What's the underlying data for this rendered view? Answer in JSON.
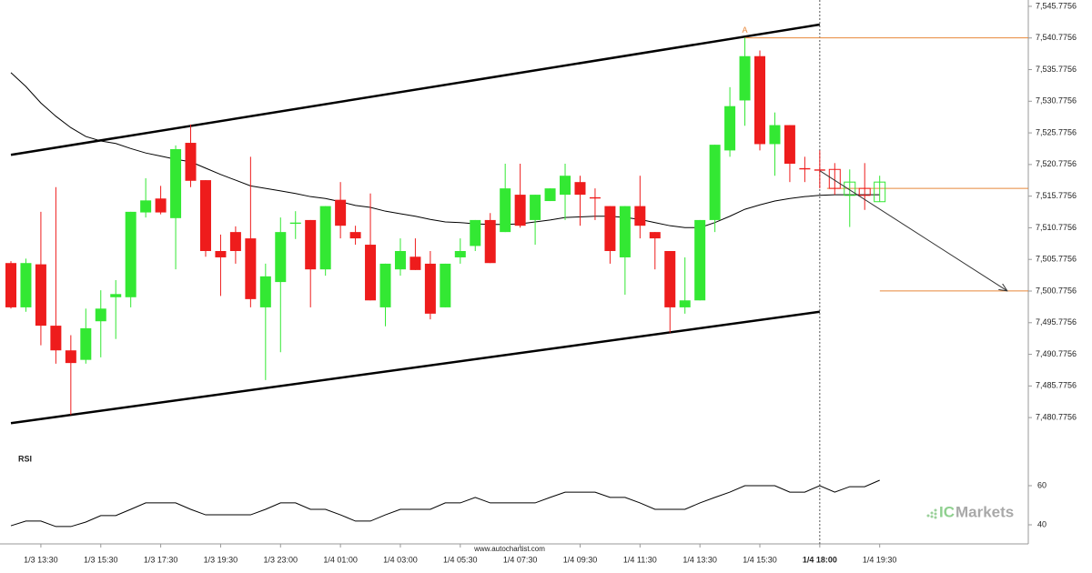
{
  "chart_data": {
    "type": "candlestick",
    "categories": [
      null,
      null,
      "1/3 13:30",
      null,
      null,
      null,
      "1/3 15:30",
      null,
      null,
      null,
      "1/3 17:30",
      null,
      null,
      null,
      "1/3 19:30",
      null,
      null,
      null,
      "1/3 23:00",
      null,
      null,
      null,
      "1/4 01:00",
      null,
      null,
      null,
      "1/4 03:00",
      null,
      null,
      null,
      "1/4 05:30",
      null,
      null,
      null,
      "1/4 07:30",
      null,
      null,
      null,
      "1/4 09:30",
      null,
      null,
      null,
      "1/4 11:30",
      null,
      null,
      null,
      "1/4 13:30",
      null,
      null,
      null,
      "1/4 15:30",
      null,
      null,
      null,
      "1/4 18:00",
      null,
      null,
      null,
      "1/4 19:30"
    ],
    "open": [
      7505.2,
      7498.2,
      7505.0,
      7495.3,
      7491.4,
      7489.9,
      7496.0,
      7499.8,
      7499.8,
      7513.2,
      7515.4,
      7512.3,
      7524.2,
      7518.3,
      7507.1,
      7510.1,
      7509.1,
      7498.2,
      7502.2,
      7511.4,
      7512.0,
      7504.2,
      7515.2,
      7510.1,
      7508.1,
      7498.2,
      7504.2,
      7506.2,
      7505.1,
      7498.2,
      7506.1,
      7507.9,
      7512.0,
      7510.1,
      7516.0,
      7512.0,
      7515.0,
      7516.0,
      7518.0,
      7515.6,
      7514.2,
      7506.1,
      7514.2,
      7510.1,
      7507.1,
      7498.2,
      7499.3,
      7512.0,
      7523.0,
      7530.9,
      7537.9,
      7524.0,
      7527.0,
      7520.2,
      7520.0,
      7520.0,
      7515.9,
      7517.0,
      7514.9
    ],
    "high": [
      7505.5,
      7505.9,
      7513.3,
      7517.2,
      7493.8,
      7498.0,
      7500.9,
      7502.5,
      7513.3,
      7518.6,
      7517.4,
      7523.8,
      7527.1,
      7518.3,
      7509.7,
      7511.0,
      7522.0,
      7505.1,
      7512.4,
      7513.4,
      7512.0,
      7514.2,
      7518.0,
      7511.1,
      7516.2,
      7505.1,
      7509.1,
      7509.1,
      7507.1,
      7505.1,
      7509.1,
      7512.0,
      7513.1,
      7520.9,
      7520.9,
      7516.0,
      7517.0,
      7520.9,
      7519.0,
      7517.0,
      7514.2,
      7514.2,
      7519.0,
      7510.1,
      7507.1,
      7506.1,
      7512.0,
      7523.9,
      7533.0,
      7540.8,
      7538.8,
      7529.0,
      7527.0,
      7522.0,
      7523.0,
      7521.0,
      7520.0,
      7521.0,
      7519.0
    ],
    "low": [
      7498.0,
      7497.5,
      7492.2,
      7489.3,
      7481.2,
      7489.3,
      7490.3,
      7493.2,
      7498.2,
      7512.4,
      7512.9,
      7504.2,
      7517.2,
      7506.2,
      7500.0,
      7505.1,
      7498.2,
      7486.7,
      7491.1,
      7509.0,
      7498.2,
      7503.2,
      7509.1,
      7508.1,
      7499.3,
      7495.2,
      7503.2,
      7504.1,
      7496.3,
      7498.2,
      7505.1,
      7507.1,
      7505.2,
      7510.1,
      7510.8,
      7508.1,
      7515.0,
      7512.0,
      7511.1,
      7512.0,
      7505.1,
      7500.2,
      7509.1,
      7504.2,
      7494.2,
      7497.2,
      7499.3,
      7510.1,
      7522.0,
      7526.9,
      7523.0,
      7519.0,
      7518.0,
      7518.0,
      7517.0,
      7516.0,
      7510.9,
      7513.6,
      7514.9
    ],
    "close": [
      7498.2,
      7505.2,
      7495.3,
      7491.4,
      7489.4,
      7494.9,
      7498.0,
      7500.3,
      7513.3,
      7515.1,
      7513.2,
      7523.2,
      7518.2,
      7507.1,
      7506.1,
      7507.1,
      7499.5,
      7503.1,
      7510.1,
      7511.6,
      7504.2,
      7514.2,
      7511.1,
      7509.1,
      7499.3,
      7505.1,
      7507.1,
      7504.1,
      7497.2,
      7505.1,
      7507.1,
      7512.0,
      7505.2,
      7517.0,
      7511.1,
      7516.0,
      7517.0,
      7519.0,
      7516.0,
      7515.4,
      7507.1,
      7514.2,
      7511.1,
      7509.1,
      7498.2,
      7499.3,
      7512.0,
      7523.9,
      7530.0,
      7537.9,
      7524.0,
      7527.0,
      7520.9,
      7520.0,
      7519.8,
      7517.0,
      7518.0,
      7515.9,
      7518.0
    ],
    "ma": [
      7535.3,
      7533.1,
      7530.5,
      7528.4,
      7526.6,
      7525.2,
      7524.5,
      7524.1,
      7523.3,
      7522.6,
      7522.1,
      7521.6,
      7521.2,
      7520.2,
      7519.2,
      7518.3,
      7517.4,
      7517.0,
      7516.6,
      7516.2,
      7515.7,
      7515.4,
      7514.9,
      7514.3,
      7514.0,
      7513.4,
      7513.0,
      7512.6,
      7512.1,
      7511.7,
      7511.6,
      7511.4,
      7511.3,
      7511.3,
      7511.4,
      7511.7,
      7512.0,
      7512.4,
      7512.5,
      7512.6,
      7512.6,
      7512.4,
      7512.1,
      7511.6,
      7511.1,
      7510.8,
      7510.8,
      7511.6,
      7512.6,
      7513.7,
      7514.4,
      7515.0,
      7515.4,
      7515.7,
      7515.9,
      7516.0,
      7516.0,
      7516.0,
      7516.0
    ],
    "colors": {
      "up": "#33e833",
      "down": "#ee1c1c",
      "level": "#e8883a"
    },
    "ylim": [
      7477.7756,
      7546.7756
    ],
    "yticks": [
      {
        "value": 7545.7756,
        "label": "7,545.7756"
      },
      {
        "value": 7540.7756,
        "label": "7,540.7756"
      },
      {
        "value": 7535.7756,
        "label": "7,535.7756"
      },
      {
        "value": 7530.7756,
        "label": "7,530.7756"
      },
      {
        "value": 7525.7756,
        "label": "7,525.7756"
      },
      {
        "value": 7520.7756,
        "label": "7,520.7756"
      },
      {
        "value": 7515.7756,
        "label": "7,515.7756"
      },
      {
        "value": 7510.7756,
        "label": "7,510.7756"
      },
      {
        "value": 7505.7756,
        "label": "7,505.7756"
      },
      {
        "value": 7500.7756,
        "label": "7,500.7756"
      },
      {
        "value": 7495.7756,
        "label": "7,495.7756"
      },
      {
        "value": 7490.7756,
        "label": "7,490.7756"
      },
      {
        "value": 7485.7756,
        "label": "7,485.7756"
      },
      {
        "value": 7480.7756,
        "label": "7,480.7756"
      }
    ],
    "now": "1/4 18:00",
    "channel": [
      [
        7522.3,
        7542.9
      ],
      [
        7479.9,
        7497.5
      ]
    ],
    "levels": [
      7540.8,
      7517.0,
      7500.8
    ],
    "forecast": {
      "from": 7519.8,
      "to": 7500.8
    },
    "annotation": "A",
    "rsi": {
      "label": "RSI",
      "ylim": [
        30,
        70
      ],
      "yticks": [
        40,
        60
      ],
      "values": [
        39.5,
        41.9,
        41.9,
        39.1,
        39.1,
        41.4,
        44.7,
        44.7,
        47.9,
        51.2,
        51.2,
        51.2,
        47.9,
        45.1,
        45.1,
        45.1,
        45.1,
        47.9,
        51.2,
        51.2,
        47.9,
        47.9,
        45.1,
        41.9,
        41.9,
        45.1,
        47.9,
        47.9,
        47.9,
        51.2,
        51.2,
        54.0,
        51.2,
        51.2,
        51.2,
        51.2,
        54.0,
        56.7,
        56.7,
        56.7,
        54.0,
        54.0,
        51.2,
        47.9,
        47.9,
        47.9,
        51.2,
        54.0,
        56.7,
        60.0,
        60.0,
        60.0,
        56.7,
        56.7,
        60.0,
        56.7,
        59.5,
        59.5,
        62.8
      ]
    },
    "watermark": "www.autochartist.com",
    "brand": {
      "prefix": "IC",
      "name": "Markets"
    }
  }
}
